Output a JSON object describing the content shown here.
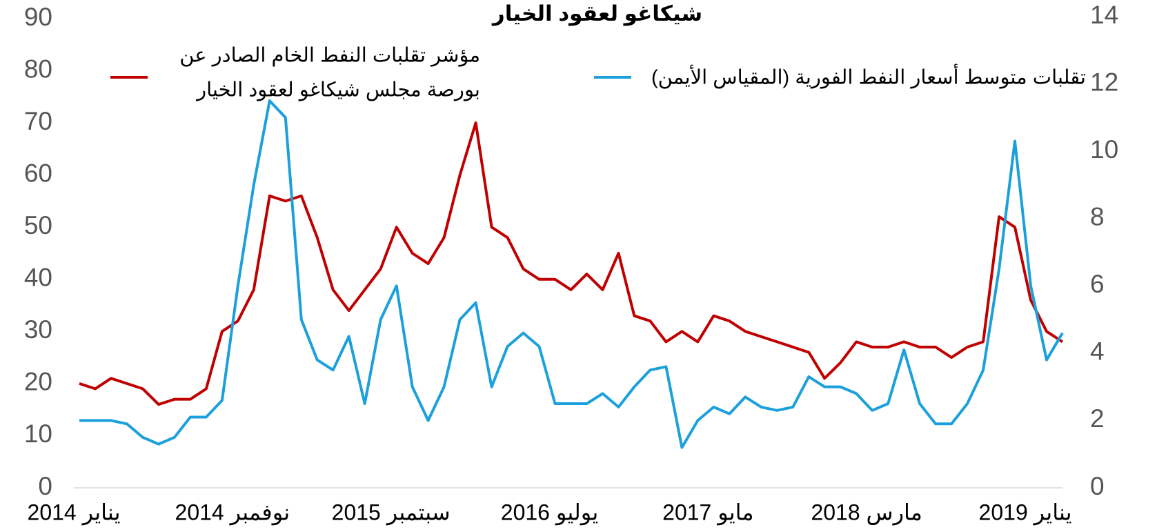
{
  "chart_data": {
    "type": "line",
    "title": "شيكاغو لعقود الخيار",
    "x": [
      "2014-01",
      "2014-02",
      "2014-03",
      "2014-04",
      "2014-05",
      "2014-06",
      "2014-07",
      "2014-08",
      "2014-09",
      "2014-10",
      "2014-11",
      "2014-12",
      "2015-01",
      "2015-02",
      "2015-03",
      "2015-04",
      "2015-05",
      "2015-06",
      "2015-07",
      "2015-08",
      "2015-09",
      "2015-10",
      "2015-11",
      "2015-12",
      "2016-01",
      "2016-02",
      "2016-03",
      "2016-04",
      "2016-05",
      "2016-06",
      "2016-07",
      "2016-08",
      "2016-09",
      "2016-10",
      "2016-11",
      "2016-12",
      "2017-01",
      "2017-02",
      "2017-03",
      "2017-04",
      "2017-05",
      "2017-06",
      "2017-07",
      "2017-08",
      "2017-09",
      "2017-10",
      "2017-11",
      "2017-12",
      "2018-01",
      "2018-02",
      "2018-03",
      "2018-04",
      "2018-05",
      "2018-06",
      "2018-07",
      "2018-08",
      "2018-09",
      "2018-10",
      "2018-11",
      "2018-12",
      "2019-01",
      "2019-02",
      "2019-03"
    ],
    "xticks": [
      {
        "value": "2014-01",
        "label": "يناير 2014"
      },
      {
        "value": "2014-11",
        "label": "نوفمبر 2014"
      },
      {
        "value": "2015-09",
        "label": "سبتمبر 2015"
      },
      {
        "value": "2016-07",
        "label": "يوليو 2016"
      },
      {
        "value": "2017-05",
        "label": "مايو 2017"
      },
      {
        "value": "2018-03",
        "label": "مارس 2018"
      },
      {
        "value": "2019-01",
        "label": "يناير 2019"
      }
    ],
    "series": [
      {
        "name": "مؤشر تقلبات النفط الخام الصادر عن بورصة مجلس شيكاغو لعقود الخيار",
        "name_lines": [
          "مؤشر تقلبات النفط الخام الصادر عن",
          "بورصة مجلس شيكاغو لعقود الخيار"
        ],
        "color": "#c00000",
        "values": [
          20,
          19,
          21,
          20,
          19,
          16,
          17,
          17,
          19,
          30,
          32,
          38,
          56,
          55,
          56,
          48,
          38,
          34,
          38,
          42,
          50,
          45,
          43,
          48,
          60,
          70,
          50,
          48,
          42,
          40,
          40,
          38,
          41,
          38,
          45,
          33,
          32,
          28,
          30,
          28,
          33,
          32,
          30,
          29,
          28,
          27,
          26,
          21,
          24,
          28,
          27,
          27,
          28,
          27,
          27,
          25,
          27,
          28,
          52,
          50,
          36,
          30,
          28
        ]
      },
      {
        "name": "تقلبات متوسط أسعار النفط الفورية (المقياس الأيمن)",
        "color": "#1ca0dc",
        "axis": "y2",
        "values": [
          2.0,
          2.0,
          2.0,
          1.9,
          1.5,
          1.3,
          1.5,
          2.1,
          2.1,
          2.6,
          6.0,
          9.0,
          11.5,
          11.0,
          5.0,
          3.8,
          3.5,
          4.5,
          2.5,
          5.0,
          6.0,
          3.0,
          2.0,
          3.0,
          5.0,
          5.5,
          3.0,
          4.2,
          4.6,
          4.2,
          2.5,
          2.5,
          2.5,
          2.8,
          2.4,
          3.0,
          3.5,
          3.6,
          1.2,
          2.0,
          2.4,
          2.2,
          2.7,
          2.4,
          2.3,
          2.4,
          3.3,
          3.0,
          3.0,
          2.8,
          2.3,
          2.5,
          4.1,
          2.5,
          1.9,
          1.9,
          2.5,
          3.5,
          6.5,
          10.3,
          6.0,
          3.8,
          4.6
        ]
      }
    ],
    "ylim": [
      0,
      90
    ],
    "yticks": [
      0,
      10,
      20,
      30,
      40,
      50,
      60,
      70,
      80,
      90
    ],
    "y2lim": [
      0,
      14
    ],
    "y2ticks": [
      0,
      2,
      4,
      6,
      8,
      10,
      12,
      14
    ]
  }
}
